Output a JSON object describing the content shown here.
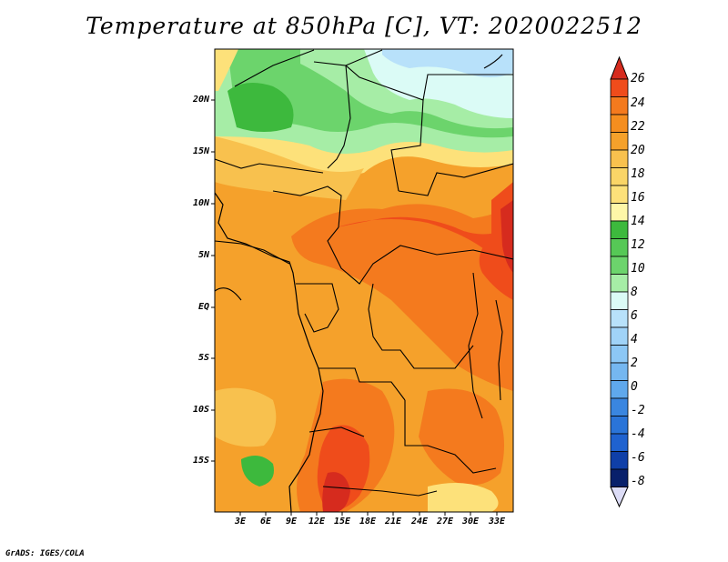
{
  "title": "Temperature at 850hPa [C], VT: 2020022512",
  "credit": "GrADS: IGES/COLA",
  "lat_labels": [
    "20N",
    "15N",
    "10N",
    "5N",
    "EQ",
    "5S",
    "10S",
    "15S"
  ],
  "lon_labels": [
    "3E",
    "6E",
    "9E",
    "12E",
    "15E",
    "18E",
    "21E",
    "24E",
    "27E",
    "30E",
    "33E"
  ],
  "colorbar": {
    "levels": [
      "26",
      "24",
      "22",
      "20",
      "18",
      "16",
      "14",
      "12",
      "10",
      "8",
      "6",
      "4",
      "2",
      "0",
      "-2",
      "-4",
      "-6",
      "-8"
    ],
    "colors": [
      "#d62b1e",
      "#ef4c1b",
      "#f47a1e",
      "#f5a12b",
      "#f8c14e",
      "#fde17a",
      "#fef7a8",
      "#3db93d",
      "#6cd46c",
      "#a6eda6",
      "#dbfbf6",
      "#b8e1fa",
      "#8cc7f5",
      "#5fa8ec",
      "#3a86e0",
      "#1f62cf",
      "#0f3fa8",
      "#08206b",
      "#dcdcf6"
    ]
  }
}
